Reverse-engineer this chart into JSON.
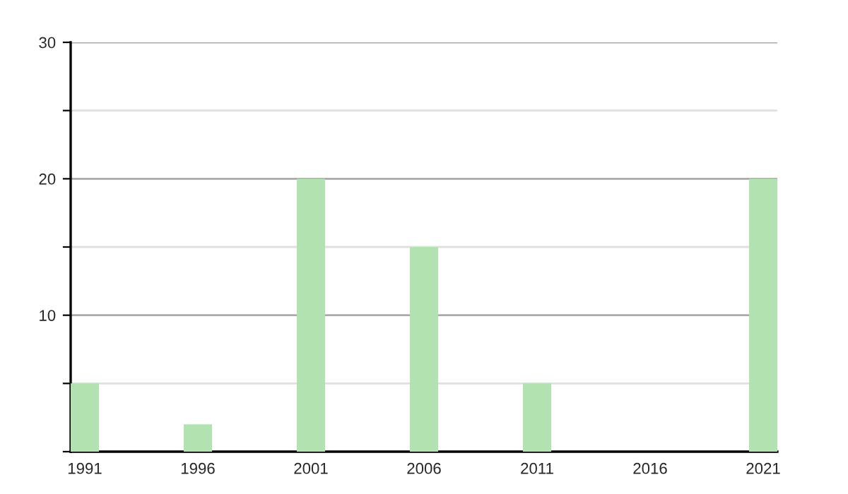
{
  "chart_data": {
    "type": "bar",
    "categories": [
      "1991",
      "1996",
      "2001",
      "2006",
      "2011",
      "2016",
      "2021"
    ],
    "values": [
      5,
      2,
      20,
      15,
      5,
      null,
      20
    ],
    "color": "#b2e2b0",
    "ylim": [
      0,
      30
    ],
    "yticks": [
      {
        "value": 0,
        "label": null
      },
      {
        "value": 5,
        "label": null
      },
      10,
      {
        "value": 15,
        "label": null
      },
      20,
      {
        "value": 25,
        "label": null
      },
      30
    ],
    "grid": "y"
  }
}
